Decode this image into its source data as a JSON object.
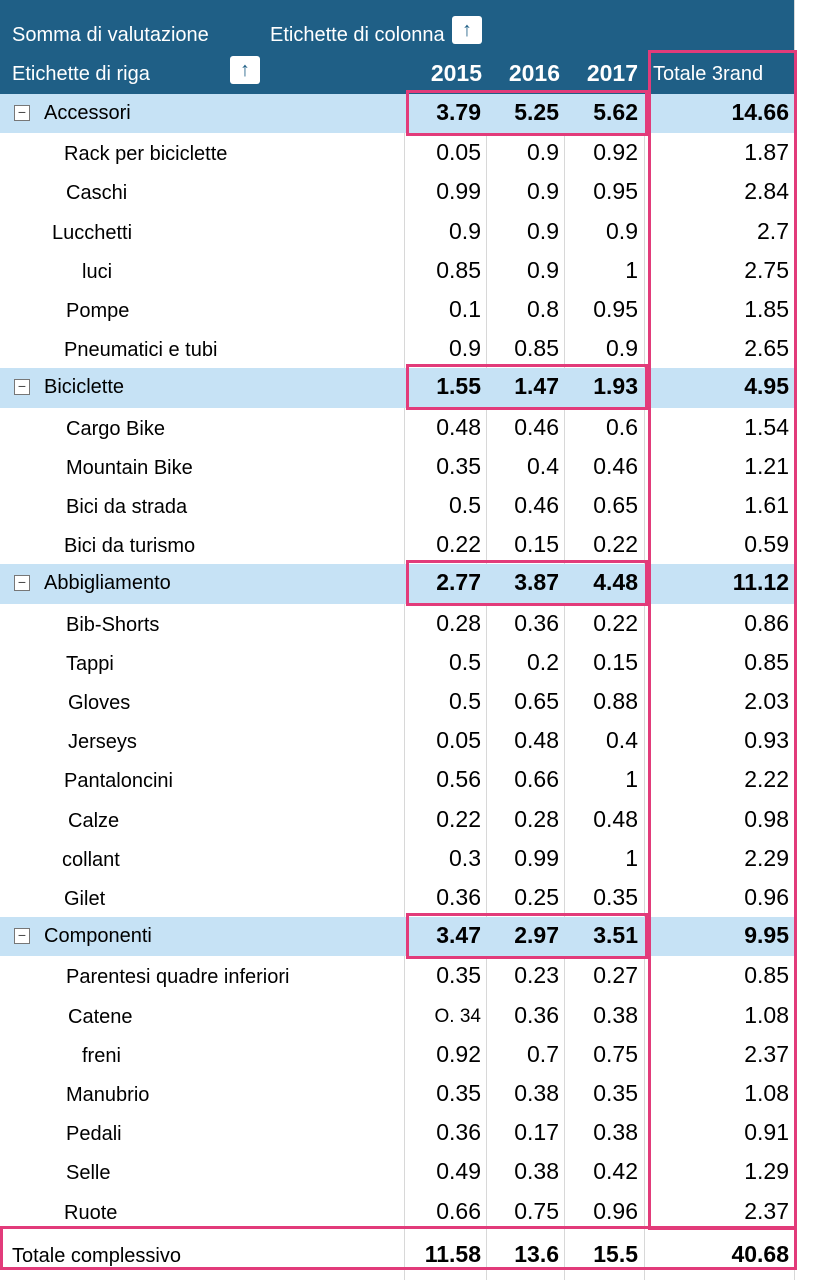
{
  "pivot": {
    "header": {
      "values_label": "Somma di valutazione",
      "column_labels": "Etichette di colonna",
      "row_labels": "Etichette di riga",
      "years": [
        "2015",
        "2016",
        "2017"
      ],
      "total_label": "Totale 3rand",
      "sort_icon": "up-arrow-icon"
    },
    "groups": [
      {
        "name": "Accessori",
        "values": [
          "3.79",
          "5.25",
          "5.62",
          "14.66"
        ],
        "items": [
          {
            "name": "Rack per biciclette",
            "values": [
              "0.05",
              "0.9",
              "0.92",
              "1.87"
            ]
          },
          {
            "name": "Caschi",
            "values": [
              "0.99",
              "0.9",
              "0.95",
              "2.84"
            ]
          },
          {
            "name": "Lucchetti",
            "values": [
              "0.9",
              "0.9",
              "0.9",
              "2.7"
            ]
          },
          {
            "name": "luci",
            "values": [
              "0.85",
              "0.9",
              "1",
              "2.75"
            ]
          },
          {
            "name": "Pompe",
            "values": [
              "0.1",
              "0.8",
              "0.95",
              "1.85"
            ]
          },
          {
            "name": "Pneumatici e tubi",
            "values": [
              "0.9",
              "0.85",
              "0.9",
              "2.65"
            ]
          }
        ]
      },
      {
        "name": "Biciclette",
        "values": [
          "1.55",
          "1.47",
          "1.93",
          "4.95"
        ],
        "items": [
          {
            "name": "Cargo Bike",
            "values": [
              "0.48",
              "0.46",
              "0.6",
              "1.54"
            ]
          },
          {
            "name": "Mountain Bike",
            "values": [
              "0.35",
              "0.4",
              "0.46",
              "1.21"
            ]
          },
          {
            "name": "Bici da strada",
            "values": [
              "0.5",
              "0.46",
              "0.65",
              "1.61"
            ]
          },
          {
            "name": "Bici da turismo",
            "values": [
              "0.22",
              "0.15",
              "0.22",
              "0.59"
            ]
          }
        ]
      },
      {
        "name": "Abbigliamento",
        "values": [
          "2.77",
          "3.87",
          "4.48",
          "11.12"
        ],
        "items": [
          {
            "name": "Bib-Shorts",
            "values": [
              "0.28",
              "0.36",
              "0.22",
              "0.86"
            ]
          },
          {
            "name": "Tappi",
            "values": [
              "0.5",
              "0.2",
              "0.15",
              "0.85"
            ]
          },
          {
            "name": "Gloves",
            "values": [
              "0.5",
              "0.65",
              "0.88",
              "2.03"
            ]
          },
          {
            "name": "Jerseys",
            "values": [
              "0.05",
              "0.48",
              "0.4",
              "0.93"
            ]
          },
          {
            "name": "Pantaloncini",
            "values": [
              "0.56",
              "0.66",
              "1",
              "2.22"
            ]
          },
          {
            "name": "Calze",
            "values": [
              "0.22",
              "0.28",
              "0.48",
              "0.98"
            ]
          },
          {
            "name": "collant",
            "values": [
              "0.3",
              "0.99",
              "1",
              "2.29"
            ]
          },
          {
            "name": "Gilet",
            "values": [
              "0.36",
              "0.25",
              "0.35",
              "0.96"
            ]
          }
        ]
      },
      {
        "name": "Componenti",
        "values": [
          "3.47",
          "2.97",
          "3.51",
          "9.95"
        ],
        "items": [
          {
            "name": "Parentesi quadre inferiori",
            "values": [
              "0.35",
              "0.23",
              "0.27",
              "0.85"
            ]
          },
          {
            "name": "Catene",
            "values": [
              "O. 34",
              "0.36",
              "0.38",
              "1.08"
            ]
          },
          {
            "name": "freni",
            "values": [
              "0.92",
              "0.7",
              "0.75",
              "2.37"
            ]
          },
          {
            "name": "Manubrio",
            "values": [
              "0.35",
              "0.38",
              "0.35",
              "1.08"
            ]
          },
          {
            "name": "Pedali",
            "values": [
              "0.36",
              "0.17",
              "0.38",
              "0.91"
            ]
          },
          {
            "name": "Selle",
            "values": [
              "0.49",
              "0.38",
              "0.42",
              "1.29"
            ]
          },
          {
            "name": "Ruote",
            "values": [
              "0.66",
              "0.75",
              "0.96",
              "2.37"
            ]
          }
        ]
      }
    ],
    "grand_total": {
      "label": "Totale complessivo",
      "values": [
        "11.58",
        "13.6",
        "15.5",
        "40.68"
      ]
    },
    "colors": {
      "header": "#1f5f86",
      "group_band": "#c6e2f5",
      "highlight": "#e23b7a"
    }
  }
}
